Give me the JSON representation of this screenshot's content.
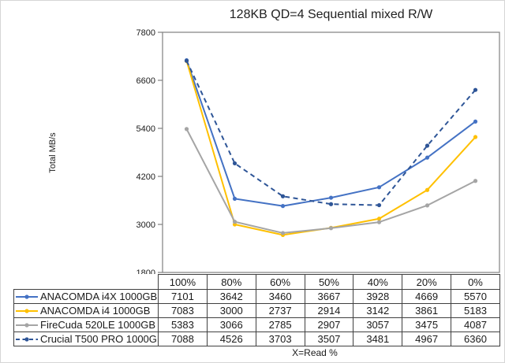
{
  "chart_data": {
    "type": "line",
    "title": "128KB QD=4 Sequential mixed R/W",
    "xlabel": "X=Read %",
    "ylabel": "Total MB/s",
    "ylim": [
      1800,
      7800
    ],
    "yticks": [
      1800,
      3000,
      4200,
      5400,
      6600,
      7800
    ],
    "categories": [
      "100%",
      "80%",
      "60%",
      "50%",
      "40%",
      "20%",
      "0%"
    ],
    "grid": false,
    "legend_position": "table-left-column",
    "axis_color": "#808080",
    "table_border_color": "#404040",
    "series": [
      {
        "name": "ANACOMDA i4X 1000GB",
        "color": "#4472C4",
        "dash": "solid",
        "marker": "circle",
        "values": [
          7101,
          3642,
          3460,
          3667,
          3928,
          4669,
          5570
        ]
      },
      {
        "name": "ANACOMDA i4 1000GB",
        "color": "#FFC000",
        "dash": "solid",
        "marker": "circle",
        "values": [
          7083,
          3000,
          2737,
          2914,
          3142,
          3861,
          5183
        ]
      },
      {
        "name": "FireCuda 520LE 1000GB",
        "color": "#A5A5A5",
        "dash": "solid",
        "marker": "circle",
        "values": [
          5383,
          3066,
          2785,
          2907,
          3057,
          3475,
          4087
        ]
      },
      {
        "name": "Crucial T500 PRO 1000GB",
        "color": "#2E5597",
        "dash": "dashed",
        "marker": "circle",
        "values": [
          7088,
          4526,
          3703,
          3507,
          3481,
          4967,
          6360
        ]
      }
    ]
  }
}
